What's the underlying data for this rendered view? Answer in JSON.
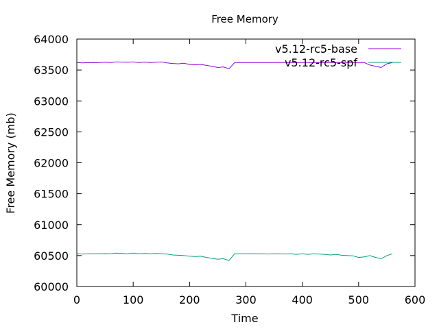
{
  "chart_data": {
    "type": "line",
    "title": "Free Memory",
    "xlabel": "Time",
    "ylabel": "Free Memory (mb)",
    "xlim": [
      0,
      600
    ],
    "ylim": [
      60000,
      64000
    ],
    "xticks": [
      0,
      100,
      200,
      300,
      400,
      500,
      600
    ],
    "yticks": [
      60000,
      60500,
      61000,
      61500,
      62000,
      62500,
      63000,
      63500,
      64000
    ],
    "grid": false,
    "legend_position": "top-right",
    "series": [
      {
        "name": "v5.12-rc5-base",
        "color": "#9400d3",
        "x": [
          0,
          10,
          20,
          30,
          40,
          50,
          60,
          70,
          80,
          90,
          100,
          110,
          120,
          130,
          140,
          150,
          160,
          170,
          180,
          190,
          200,
          210,
          220,
          230,
          240,
          250,
          260,
          270,
          280,
          290,
          300,
          310,
          320,
          330,
          340,
          350,
          360,
          370,
          380,
          390,
          400,
          410,
          420,
          430,
          440,
          450,
          460,
          470,
          480,
          490,
          500,
          510,
          520,
          530,
          540,
          550,
          560
        ],
        "values": [
          63620,
          63615,
          63620,
          63618,
          63620,
          63625,
          63620,
          63630,
          63628,
          63625,
          63630,
          63620,
          63628,
          63620,
          63625,
          63630,
          63615,
          63605,
          63600,
          63610,
          63590,
          63585,
          63590,
          63575,
          63560,
          63540,
          63550,
          63520,
          63620,
          63620,
          63620,
          63620,
          63620,
          63620,
          63620,
          63620,
          63620,
          63620,
          63620,
          63620,
          63620,
          63620,
          63620,
          63620,
          63620,
          63620,
          63620,
          63620,
          63620,
          63620,
          63620,
          63620,
          63580,
          63560,
          63540,
          63600,
          63620
        ]
      },
      {
        "name": "v5.12-rc5-spf",
        "color": "#009e73",
        "x": [
          0,
          10,
          20,
          30,
          40,
          50,
          60,
          70,
          80,
          90,
          100,
          110,
          120,
          130,
          140,
          150,
          160,
          170,
          180,
          190,
          200,
          210,
          220,
          230,
          240,
          250,
          260,
          270,
          280,
          290,
          300,
          310,
          320,
          330,
          340,
          350,
          360,
          370,
          380,
          390,
          400,
          410,
          420,
          430,
          440,
          450,
          460,
          470,
          480,
          490,
          500,
          510,
          520,
          530,
          540,
          550,
          560
        ],
        "values": [
          60530,
          60525,
          60530,
          60528,
          60530,
          60532,
          60528,
          60540,
          60535,
          60530,
          60540,
          60528,
          60535,
          60530,
          60535,
          60530,
          60525,
          60510,
          60505,
          60500,
          60490,
          60485,
          60490,
          60470,
          60455,
          60440,
          60450,
          60420,
          60530,
          60530,
          60530,
          60530,
          60530,
          60530,
          60525,
          60530,
          60530,
          60525,
          60530,
          60520,
          60530,
          60520,
          60530,
          60525,
          60520,
          60510,
          60520,
          60505,
          60500,
          60495,
          60470,
          60480,
          60500,
          60470,
          60450,
          60500,
          60530
        ]
      }
    ]
  }
}
